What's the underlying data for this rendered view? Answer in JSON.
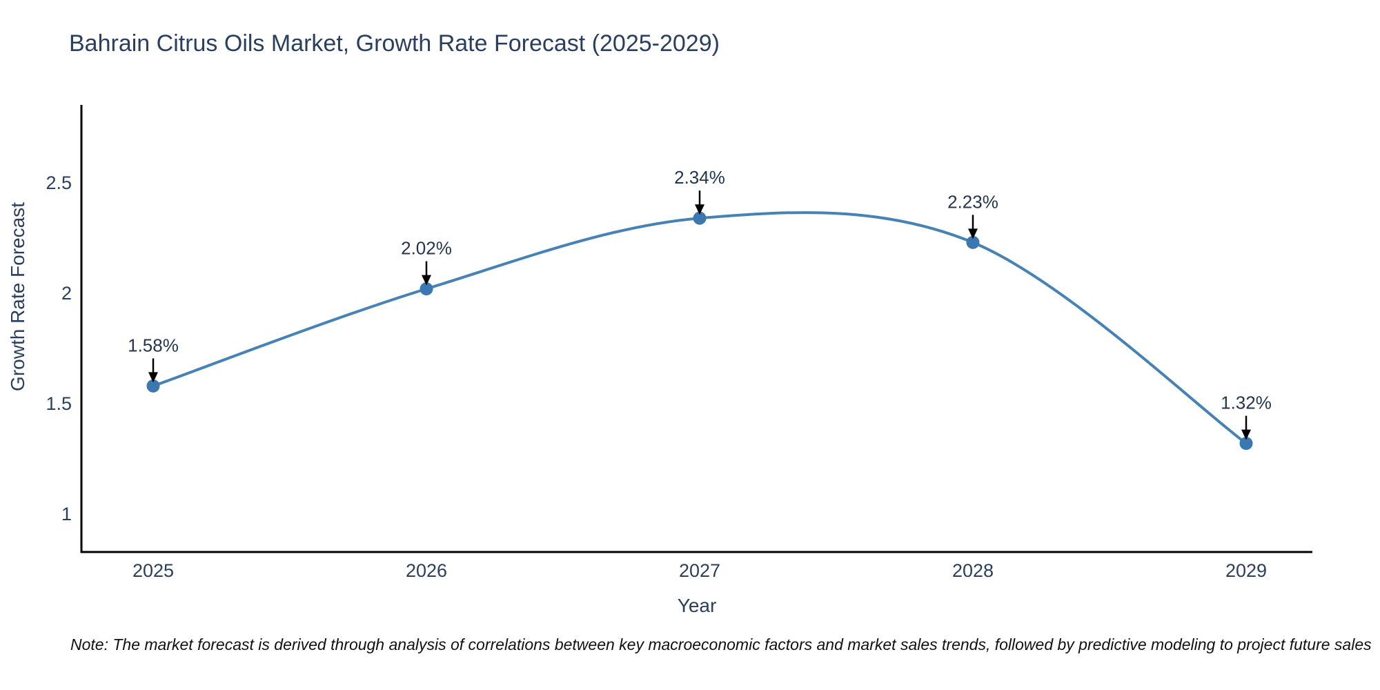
{
  "title": "Bahrain Citrus Oils Market, Growth Rate Forecast (2025-2029)",
  "note": "Note: The market forecast is derived through analysis of correlations between key macroeconomic factors and market sales trends, followed by predictive modeling to project future sales",
  "chart_data": {
    "type": "line",
    "title": "Bahrain Citrus Oils Market, Growth Rate Forecast (2025-2029)",
    "xlabel": "Year",
    "ylabel": "Growth Rate Forecast",
    "categories": [
      "2025",
      "2026",
      "2027",
      "2028",
      "2029"
    ],
    "values": [
      1.58,
      2.02,
      2.34,
      2.23,
      1.32
    ],
    "point_labels": [
      "1.58%",
      "2.02%",
      "2.34%",
      "2.23%",
      "1.32%"
    ],
    "yticks": [
      1,
      1.5,
      2,
      2.5
    ],
    "ylim": [
      0.83,
      2.85
    ],
    "line_shape": "spline",
    "grid": false,
    "legend": "none",
    "colors": {
      "line": "#4682b4",
      "marker": "#3a78b2",
      "text": "#2a3f5f",
      "annotation_text": "#24364f",
      "arrow": "#000000",
      "axis": "#000000",
      "note": "#111111",
      "background": "#ffffff"
    }
  }
}
